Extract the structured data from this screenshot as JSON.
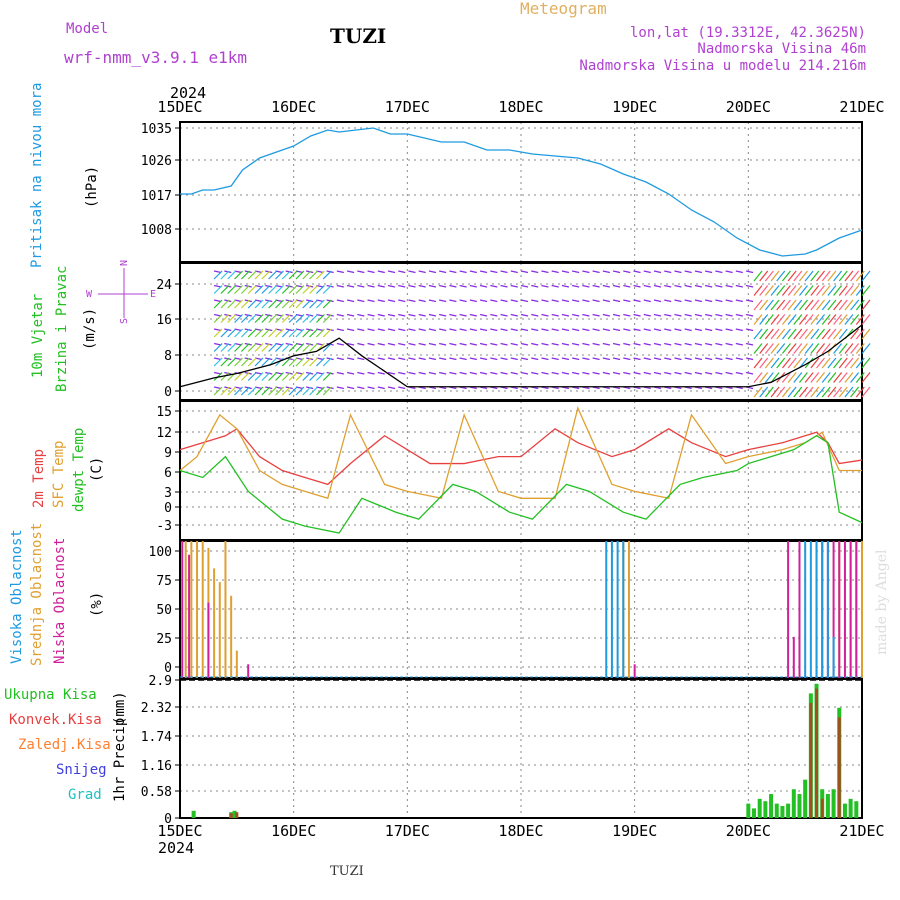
{
  "header": {
    "model_label": "Model",
    "model_name": "wrf-nmm_v3.9.1  e1km",
    "station": "TUZI",
    "meteogram_label": "Meteogram",
    "coords": "lon,lat (19.3312E, 42.3625N)",
    "altitude": "Nadmorska Visina 46m",
    "model_altitude": "Nadmorska Visina u modelu 214.216m",
    "watermark": "made by Angel",
    "footer_station": "TUZI",
    "year": "2024"
  },
  "colors": {
    "pressure": "#1e9be0",
    "temp2m": "#e84040",
    "sfc_temp": "#e0a030",
    "dewpt": "#22c022",
    "high_cloud": "#1e9be0",
    "mid_cloud": "#e0a030",
    "low_cloud": "#d0209a",
    "precip_total": "#22c022",
    "precip_conv": "#e84040",
    "precip_frz": "#ff8030",
    "snow": "#4040e0",
    "hail": "#20c0c0",
    "wind_purple": "#8a2be2",
    "header_purple": "#b040d0",
    "meteogram_gold": "#e0b060"
  },
  "chart_data": {
    "type": "line",
    "x_tick_labels": [
      "15DEC",
      "16DEC",
      "17DEC",
      "18DEC",
      "19DEC",
      "20DEC",
      "21DEC"
    ],
    "x_days": [
      0,
      1,
      2,
      3,
      4,
      5,
      6
    ],
    "panels": [
      {
        "id": "pressure",
        "ylabel": "Pritisak na nivou mora",
        "unit": "(hPa)",
        "yticks": [
          "1035",
          "1026",
          "1017",
          "1008"
        ],
        "ylim": [
          1001,
          1036
        ],
        "series": [
          {
            "x": [
              0,
              0.1,
              0.2,
              0.3,
              0.45,
              0.55,
              0.7,
              0.85,
              1.0,
              1.15,
              1.3,
              1.4,
              1.55,
              1.7,
              1.85,
              2.0,
              2.15,
              2.3,
              2.5,
              2.7,
              2.9,
              3.1,
              3.3,
              3.5,
              3.7,
              3.9,
              4.1,
              4.3,
              4.5,
              4.7,
              4.9,
              5.1,
              5.3,
              5.5,
              5.6,
              5.7,
              5.8,
              5.9,
              6.0
            ],
            "y": [
              1018,
              1018,
              1019,
              1019,
              1020,
              1024,
              1027,
              1028.5,
              1030,
              1032.5,
              1034,
              1033.5,
              1034,
              1034.5,
              1033,
              1033,
              1032,
              1031,
              1031,
              1029,
              1029,
              1028,
              1027.5,
              1027,
              1025.5,
              1023,
              1021,
              1018,
              1014,
              1011,
              1007,
              1004,
              1002.5,
              1003,
              1004,
              1005.5,
              1007,
              1008,
              1009
            ]
          }
        ]
      },
      {
        "id": "wind",
        "ylabel_1": "10m Vjetar",
        "ylabel_2": "Brzina i Pravac",
        "unit": "(m/s)",
        "compass": [
          "N",
          "W",
          "E",
          "S"
        ],
        "yticks": [
          "24",
          "16",
          "8",
          "0"
        ],
        "ylim": [
          -2,
          29
        ],
        "series": [
          {
            "name": "speed",
            "x": [
              0,
              0.3,
              0.5,
              0.8,
              1.0,
              1.2,
              1.4,
              1.6,
              2.0,
              2.5,
              3.0,
              3.5,
              4.0,
              4.5,
              5.0,
              5.2,
              5.5,
              5.7,
              5.9,
              6.0
            ],
            "y": [
              1,
              3,
              4,
              6,
              8,
              9,
              12,
              8,
              1,
              1,
              1,
              1,
              1,
              1,
              1,
              2,
              6,
              9,
              13,
              15
            ]
          }
        ]
      },
      {
        "id": "temperature",
        "ylabel_1": "2m Temp",
        "ylabel_2": "SFC Temp",
        "ylabel_3": "dewpt Temp",
        "unit": "(C)",
        "yticks": [
          "15",
          "12",
          "9",
          "6",
          "3",
          "0",
          "-3"
        ],
        "ylim": [
          -4,
          16
        ],
        "series": [
          {
            "name": "temp2m",
            "x": [
              0,
              0.2,
              0.4,
              0.5,
              0.7,
              0.9,
              1.1,
              1.3,
              1.5,
              1.8,
              2.0,
              2.2,
              2.5,
              2.8,
              3.0,
              3.3,
              3.5,
              3.8,
              4.0,
              4.3,
              4.5,
              4.8,
              5.0,
              5.3,
              5.5,
              5.6,
              5.7,
              5.8,
              6.0
            ],
            "y": [
              9,
              10,
              11,
              12,
              8,
              6,
              5,
              4,
              7,
              11,
              9,
              7,
              7,
              8,
              8,
              12,
              10,
              8,
              9,
              12,
              10,
              8,
              9,
              10,
              11,
              11.5,
              10,
              7,
              7.5
            ]
          },
          {
            "name": "sfc_temp",
            "x": [
              0,
              0.15,
              0.35,
              0.5,
              0.7,
              0.9,
              1.1,
              1.3,
              1.5,
              1.8,
              2.0,
              2.3,
              2.5,
              2.8,
              3.0,
              3.3,
              3.5,
              3.8,
              4.0,
              4.3,
              4.5,
              4.8,
              5.0,
              5.3,
              5.5,
              5.65,
              5.8,
              6.0
            ],
            "y": [
              6,
              8,
              14,
              12,
              6,
              4,
              3,
              2,
              14,
              4,
              3,
              2,
              14,
              3,
              2,
              2,
              15,
              4,
              3,
              2,
              14,
              7,
              8,
              9,
              10,
              11.5,
              6,
              6
            ]
          },
          {
            "name": "dewpt",
            "x": [
              0,
              0.2,
              0.4,
              0.6,
              0.9,
              1.1,
              1.4,
              1.6,
              1.9,
              2.1,
              2.4,
              2.6,
              2.9,
              3.1,
              3.4,
              3.6,
              3.9,
              4.1,
              4.4,
              4.6,
              4.9,
              5.0,
              5.2,
              5.4,
              5.6,
              5.7,
              5.8,
              6.0
            ],
            "y": [
              6,
              5,
              8,
              3,
              -1,
              -2,
              -3,
              2,
              0,
              -1,
              4,
              3,
              0,
              -1,
              4,
              3,
              0,
              -1,
              4,
              5,
              6,
              7,
              8,
              9,
              11,
              10,
              0,
              -1.5
            ]
          }
        ]
      },
      {
        "id": "clouds",
        "ylabel_1": "Visoka Oblacnost",
        "ylabel_2": "Srednja Oblacnost",
        "ylabel_3": "Niska Oblacnost",
        "unit": "(%)",
        "yticks": [
          "100",
          "75",
          "50",
          "25",
          "0"
        ],
        "ylim": [
          0,
          100
        ],
        "high": {
          "x": [
            3.75,
            3.8,
            3.85,
            3.9,
            5.5,
            5.55,
            5.6,
            5.65,
            5.7,
            5.75
          ],
          "y": [
            100,
            100,
            100,
            100,
            100,
            100,
            100,
            100,
            100,
            30
          ]
        },
        "mid": {
          "x": [
            0.05,
            0.1,
            0.15,
            0.2,
            0.25,
            0.3,
            0.35,
            0.4,
            0.45,
            0.5,
            3.9,
            3.95,
            5.8,
            5.9,
            5.95,
            6.0
          ],
          "y": [
            100,
            100,
            100,
            100,
            95,
            80,
            70,
            100,
            60,
            20,
            100,
            100,
            100,
            100,
            100,
            100
          ]
        },
        "low": {
          "x": [
            0.02,
            0.08,
            0.25,
            0.6,
            4.0,
            5.35,
            5.4,
            5.45,
            5.6,
            5.65,
            5.7,
            5.75,
            5.8,
            5.85,
            5.9,
            5.95
          ],
          "y": [
            100,
            90,
            55,
            10,
            10,
            100,
            30,
            100,
            100,
            100,
            100,
            100,
            100,
            100,
            100,
            100
          ]
        }
      },
      {
        "id": "precip",
        "ylabel_1": "1hr Precip",
        "unit": "(mm)",
        "legend": [
          "Ukupna  Kisa",
          "Konvek.Kisa",
          "Zaledj.Kisa",
          "Snijeg",
          "Grad"
        ],
        "yticks": [
          "2.9",
          "2.32",
          "1.74",
          "1.16",
          "0.58",
          "0"
        ],
        "ylim": [
          0,
          2.9
        ],
        "total": {
          "x": [
            0.12,
            0.45,
            0.48,
            5.0,
            5.05,
            5.1,
            5.15,
            5.2,
            5.25,
            5.3,
            5.35,
            5.4,
            5.45,
            5.5,
            5.55,
            5.6,
            5.65,
            5.7,
            5.75,
            5.8,
            5.85,
            5.9,
            5.95
          ],
          "y": [
            0.15,
            0.12,
            0.15,
            0.3,
            0.2,
            0.4,
            0.35,
            0.5,
            0.3,
            0.25,
            0.3,
            0.6,
            0.5,
            0.8,
            2.6,
            2.8,
            0.6,
            0.5,
            0.6,
            2.3,
            0.3,
            0.4,
            0.35
          ]
        },
        "conv": {
          "x": [
            0.45,
            0.5,
            5.55,
            5.6,
            5.65,
            5.8
          ],
          "y": [
            0.1,
            0.12,
            2.4,
            2.7,
            0.4,
            2.1
          ]
        }
      }
    ]
  }
}
